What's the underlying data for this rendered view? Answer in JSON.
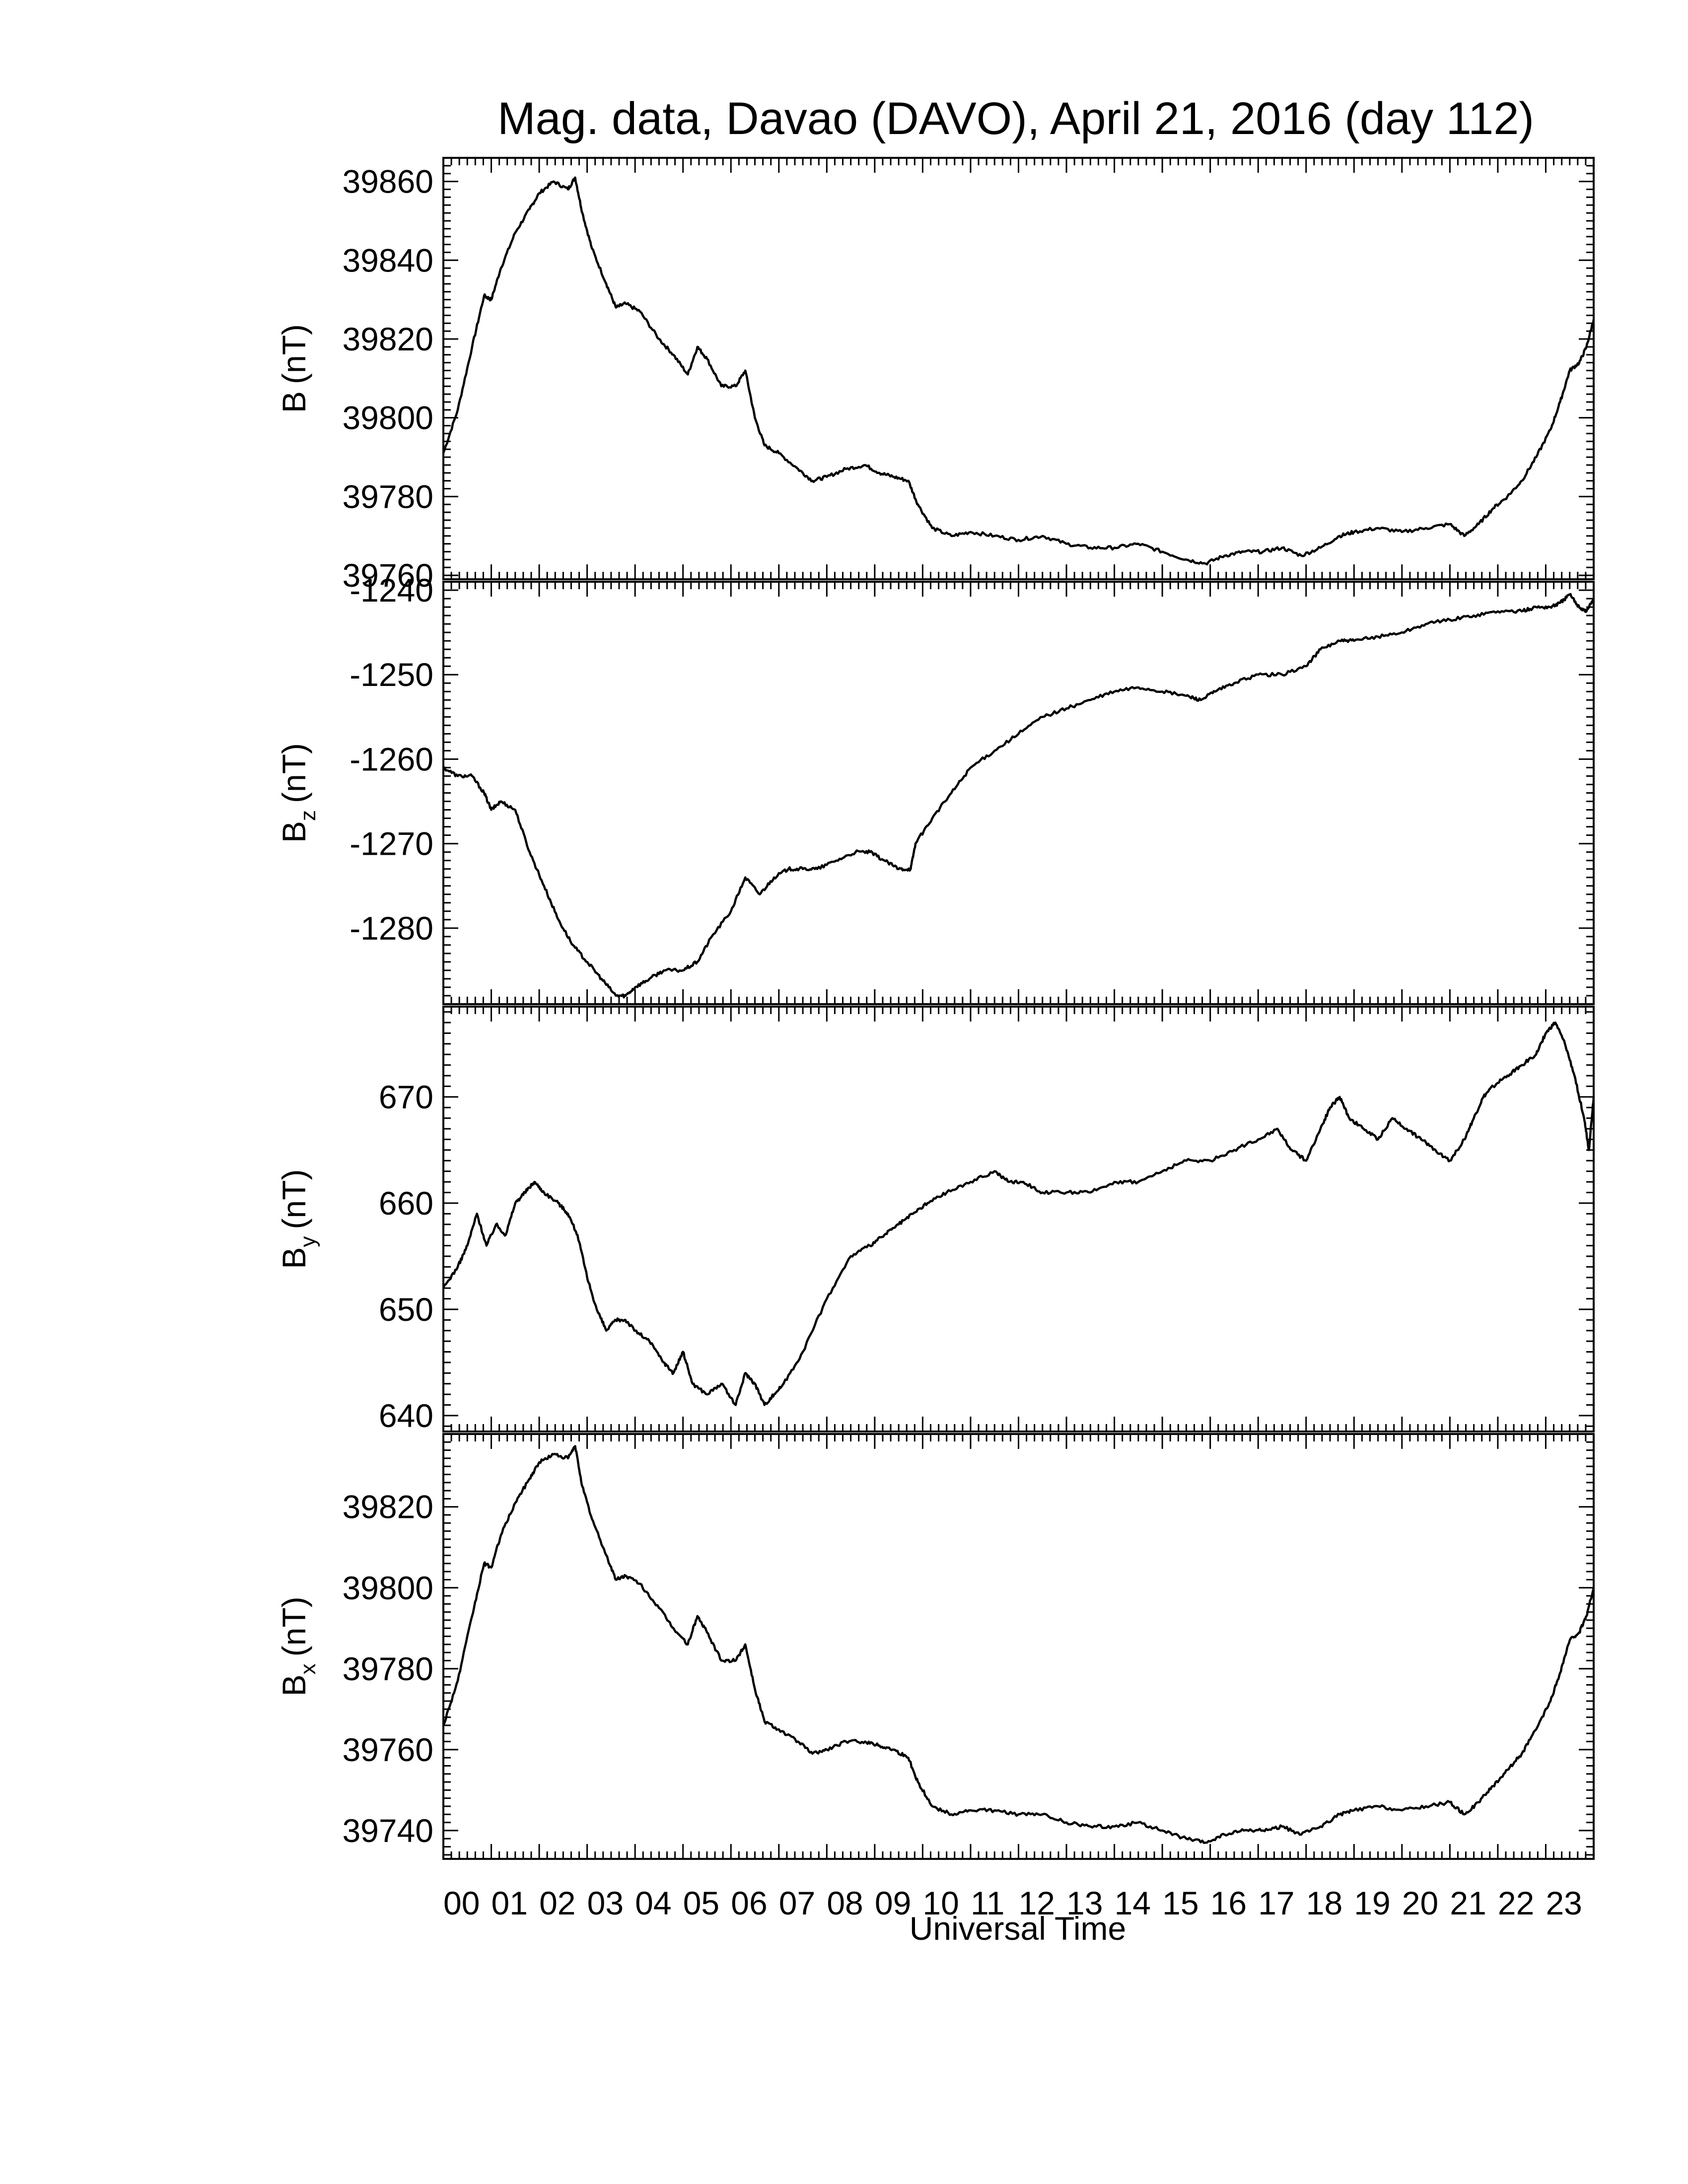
{
  "title": "Mag. data, Davao (DAVO), April 21, 2016 (day 112)",
  "xlabel": "Universal Time",
  "x_tick_labels": [
    "00",
    "01",
    "02",
    "03",
    "04",
    "05",
    "06",
    "07",
    "08",
    "09",
    "10",
    "11",
    "12",
    "13",
    "14",
    "15",
    "16",
    "17",
    "18",
    "19",
    "20",
    "21",
    "22",
    "23"
  ],
  "line_color": "#000000",
  "chart_data": [
    {
      "type": "line",
      "ylabel": "B (nT)",
      "ylabel_main": "B",
      "ylabel_sub": "",
      "ylabel_unit": "(nT)",
      "xlim": [
        0,
        24
      ],
      "ylim": [
        39759,
        39866
      ],
      "yticks": [
        39760,
        39780,
        39800,
        39820,
        39840,
        39860
      ],
      "ytick_labels": [
        "39760",
        "39780",
        "39800",
        "39820",
        "39840",
        "39860"
      ],
      "x": [
        0.0,
        0.3,
        0.6,
        0.85,
        1.0,
        1.2,
        1.5,
        1.8,
        2.0,
        2.3,
        2.6,
        2.75,
        2.9,
        3.1,
        3.4,
        3.6,
        3.8,
        4.1,
        4.5,
        4.8,
        5.1,
        5.3,
        5.5,
        5.8,
        6.1,
        6.3,
        6.5,
        6.7,
        7.0,
        7.4,
        7.7,
        8.0,
        8.4,
        8.8,
        9.1,
        9.4,
        9.7,
        9.9,
        10.2,
        10.6,
        11.0,
        11.5,
        12.0,
        12.5,
        13.0,
        13.5,
        14.0,
        14.5,
        15.0,
        15.5,
        15.9,
        16.3,
        16.7,
        17.1,
        17.5,
        17.9,
        18.3,
        18.7,
        19.0,
        19.5,
        20.0,
        20.5,
        21.0,
        21.3,
        21.6,
        21.9,
        22.2,
        22.5,
        22.8,
        23.1,
        23.3,
        23.5,
        23.7,
        23.85,
        24.0
      ],
      "y": [
        39791,
        39802,
        39818,
        39831,
        39830,
        39838,
        39847,
        39853,
        39857,
        39860,
        39858,
        39861,
        39852,
        39843,
        39834,
        39828,
        39829,
        39827,
        39820,
        39816,
        39811,
        39818,
        39815,
        39808,
        39808,
        39812,
        39800,
        39793,
        39791,
        39787,
        39784,
        39785,
        39787,
        39788,
        39786,
        39785,
        39784,
        39778,
        39772,
        39770,
        39771,
        39770,
        39769,
        39770,
        39768,
        39767,
        39767,
        39768,
        39766,
        39764,
        39763,
        39765,
        39766,
        39766,
        39767,
        39765,
        39767,
        39770,
        39771,
        39772,
        39771,
        39772,
        39773,
        39770,
        39773,
        39777,
        39780,
        39784,
        39790,
        39797,
        39804,
        39812,
        39814,
        39818,
        39825
      ]
    },
    {
      "type": "line",
      "ylabel": "Bz (nT)",
      "ylabel_main": "B",
      "ylabel_sub": "z",
      "ylabel_unit": "(nT)",
      "xlim": [
        0,
        24
      ],
      "ylim": [
        -1289,
        -1239
      ],
      "yticks": [
        -1280,
        -1270,
        -1260,
        -1250,
        -1240
      ],
      "ytick_labels": [
        "-1280",
        "-1270",
        "-1260",
        "-1250",
        "-1240"
      ],
      "x": [
        0.0,
        0.3,
        0.6,
        0.85,
        1.0,
        1.2,
        1.5,
        1.8,
        2.1,
        2.4,
        2.7,
        3.0,
        3.3,
        3.6,
        3.8,
        4.0,
        4.3,
        4.6,
        5.0,
        5.3,
        5.6,
        6.0,
        6.3,
        6.6,
        6.9,
        7.2,
        7.5,
        7.8,
        8.2,
        8.6,
        8.9,
        9.2,
        9.5,
        9.75,
        9.85,
        10.2,
        10.6,
        11.0,
        11.5,
        12.0,
        12.5,
        13.0,
        13.5,
        14.0,
        14.5,
        15.0,
        15.5,
        15.8,
        16.1,
        16.5,
        17.0,
        17.5,
        18.0,
        18.3,
        18.7,
        19.0,
        19.5,
        20.0,
        20.5,
        21.0,
        21.5,
        22.0,
        22.5,
        22.8,
        23.1,
        23.3,
        23.5,
        23.7,
        23.85,
        24.0
      ],
      "y": [
        -1261,
        -1262,
        -1262,
        -1264,
        -1266,
        -1265,
        -1266,
        -1271,
        -1275,
        -1279,
        -1282,
        -1284,
        -1286,
        -1288,
        -1288,
        -1287,
        -1286,
        -1285,
        -1285,
        -1284,
        -1281,
        -1278,
        -1274,
        -1276,
        -1274,
        -1273,
        -1273,
        -1273,
        -1272,
        -1271,
        -1271,
        -1272,
        -1273,
        -1273,
        -1270,
        -1267,
        -1264,
        -1261,
        -1259,
        -1257,
        -1255,
        -1254,
        -1253,
        -1252,
        -1251.5,
        -1252,
        -1252.5,
        -1253,
        -1252,
        -1251,
        -1250,
        -1250,
        -1249,
        -1247,
        -1246,
        -1246,
        -1245.5,
        -1245,
        -1244,
        -1243.5,
        -1243,
        -1242.5,
        -1242.5,
        -1242,
        -1242,
        -1241.5,
        -1240.5,
        -1242,
        -1242.5,
        -1241
      ]
    },
    {
      "type": "line",
      "ylabel": "By (nT)",
      "ylabel_main": "B",
      "ylabel_sub": "y",
      "ylabel_unit": "(nT)",
      "xlim": [
        0,
        24
      ],
      "ylim": [
        638.5,
        678.5
      ],
      "yticks": [
        640,
        650,
        660,
        670
      ],
      "ytick_labels": [
        "640",
        "650",
        "660",
        "670"
      ],
      "x": [
        0.0,
        0.3,
        0.5,
        0.7,
        0.9,
        1.1,
        1.3,
        1.5,
        1.7,
        1.9,
        2.1,
        2.4,
        2.6,
        2.8,
        3.0,
        3.2,
        3.4,
        3.6,
        3.8,
        4.0,
        4.3,
        4.6,
        4.8,
        5.0,
        5.2,
        5.5,
        5.8,
        6.1,
        6.3,
        6.5,
        6.7,
        6.9,
        7.1,
        7.5,
        8.0,
        8.5,
        8.9,
        9.2,
        9.5,
        9.8,
        10.1,
        10.5,
        11.0,
        11.5,
        11.8,
        12.1,
        12.5,
        13.0,
        13.5,
        14.0,
        14.5,
        15.0,
        15.5,
        16.0,
        16.5,
        17.0,
        17.4,
        17.7,
        18.0,
        18.3,
        18.5,
        18.7,
        18.9,
        19.2,
        19.5,
        19.8,
        20.1,
        20.4,
        20.7,
        21.0,
        21.3,
        21.5,
        21.7,
        21.9,
        22.2,
        22.5,
        22.8,
        23.0,
        23.2,
        23.4,
        23.6,
        23.8,
        23.9,
        24.0
      ],
      "y": [
        652,
        654,
        656,
        659,
        656,
        658,
        657,
        660,
        661,
        662,
        661,
        660,
        659,
        657,
        653,
        650,
        648,
        649,
        649,
        648,
        647,
        645,
        644,
        646,
        643,
        642,
        643,
        641,
        644,
        643,
        641,
        642,
        643,
        646,
        651,
        655,
        656,
        657,
        658,
        659,
        660,
        661,
        662,
        663,
        662,
        662,
        661,
        661,
        661,
        662,
        662,
        663,
        664,
        664,
        665,
        666,
        667,
        665,
        664,
        667,
        669,
        670,
        668,
        667,
        666,
        668,
        667,
        666,
        665,
        664,
        666,
        668,
        670,
        671,
        672,
        673,
        674,
        676,
        677,
        675,
        672,
        668,
        665,
        670
      ]
    },
    {
      "type": "line",
      "ylabel": "Bx (nT)",
      "ylabel_main": "B",
      "ylabel_sub": "x",
      "ylabel_unit": "(nT)",
      "xlim": [
        0,
        24
      ],
      "ylim": [
        39733,
        39838
      ],
      "yticks": [
        39740,
        39760,
        39780,
        39800,
        39820
      ],
      "ytick_labels": [
        "39740",
        "39760",
        "39780",
        "39800",
        "39820"
      ],
      "x": [
        0.0,
        0.3,
        0.6,
        0.85,
        1.0,
        1.2,
        1.5,
        1.8,
        2.0,
        2.3,
        2.6,
        2.75,
        2.9,
        3.1,
        3.4,
        3.6,
        3.8,
        4.1,
        4.5,
        4.8,
        5.1,
        5.3,
        5.5,
        5.8,
        6.1,
        6.3,
        6.5,
        6.7,
        7.0,
        7.4,
        7.7,
        8.0,
        8.4,
        8.8,
        9.1,
        9.4,
        9.7,
        9.9,
        10.2,
        10.6,
        11.0,
        11.5,
        12.0,
        12.5,
        13.0,
        13.5,
        14.0,
        14.5,
        15.0,
        15.5,
        15.9,
        16.3,
        16.7,
        17.1,
        17.5,
        17.9,
        18.3,
        18.7,
        19.0,
        19.5,
        20.0,
        20.5,
        21.0,
        21.3,
        21.6,
        21.9,
        22.2,
        22.5,
        22.8,
        23.1,
        23.3,
        23.5,
        23.7,
        23.85,
        24.0
      ],
      "y": [
        39766,
        39777,
        39793,
        39806,
        39805,
        39813,
        39821,
        39827,
        39831,
        39833,
        39832,
        39835,
        39825,
        39817,
        39808,
        39802,
        39803,
        39801,
        39795,
        39790,
        39786,
        39793,
        39789,
        39782,
        39782,
        39786,
        39775,
        39767,
        39765,
        39762,
        39759,
        39760,
        39762,
        39762,
        39761,
        39760,
        39758,
        39752,
        39746,
        39744,
        39745,
        39745,
        39744,
        39744,
        39742,
        39741,
        39741,
        39742,
        39740,
        39738,
        39737,
        39739,
        39740,
        39740,
        39741,
        39739,
        39741,
        39744,
        39745,
        39746,
        39745,
        39746,
        39747,
        39744,
        39747,
        39751,
        39755,
        39759,
        39765,
        39772,
        39779,
        39787,
        39789,
        39793,
        39800
      ]
    }
  ]
}
